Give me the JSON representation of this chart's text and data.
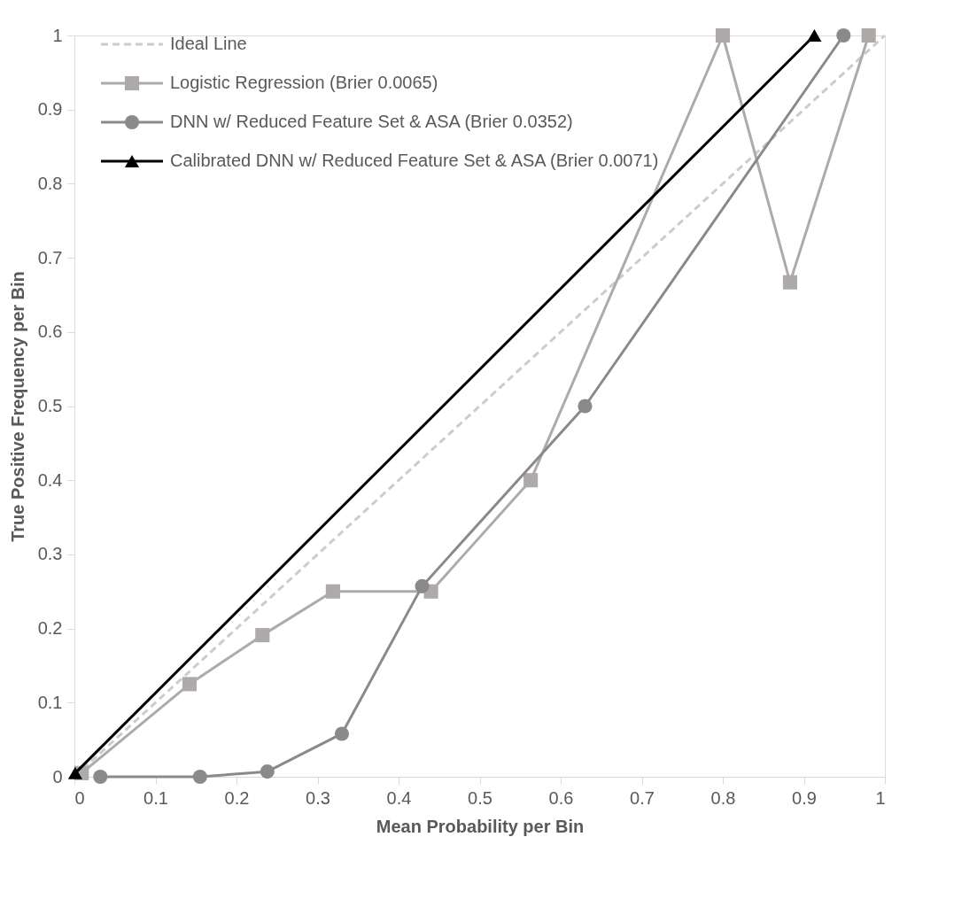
{
  "chart_data": {
    "type": "line",
    "xlabel": "Mean Probability per Bin",
    "ylabel": "True Positive Frequency per Bin",
    "xlim": [
      0,
      1
    ],
    "ylim": [
      0,
      1
    ],
    "xticks": [
      0,
      0.1,
      0.2,
      0.3,
      0.4,
      0.5,
      0.6,
      0.7,
      0.8,
      0.9,
      1
    ],
    "yticks": [
      0,
      0.1,
      0.2,
      0.3,
      0.4,
      0.5,
      0.6,
      0.7,
      0.8,
      0.9,
      1
    ],
    "grid": false,
    "legend": "top left",
    "series": [
      {
        "name": "Ideal Line",
        "color": "#cccccc",
        "line_style": "dashed",
        "marker": "none",
        "x": [
          0,
          1
        ],
        "values": [
          0,
          1
        ]
      },
      {
        "name": "Logistic Regression (Brier 0.0065)",
        "color": "#aeaaaa",
        "line_style": "solid",
        "marker": "square",
        "x": [
          0.009,
          0.142,
          0.232,
          0.319,
          0.44,
          0.563,
          0.8,
          0.883,
          0.98
        ],
        "values": [
          0.005,
          0.125,
          0.191,
          0.25,
          0.25,
          0.4,
          1,
          0.667,
          1
        ]
      },
      {
        "name": "DNN w/ Reduced Feature Set & ASA (Brier 0.0352)",
        "color": "#8a8a8a",
        "line_style": "solid",
        "marker": "circle",
        "x": [
          0.032,
          0.155,
          0.238,
          0.33,
          0.429,
          0.63,
          0.949
        ],
        "values": [
          0,
          0,
          0.007,
          0.058,
          0.257,
          0.5,
          1
        ]
      },
      {
        "name": "Calibrated DNN w/ Reduced Feature Set & ASA (Brier 0.0071)",
        "color": "#000000",
        "line_style": "solid",
        "marker": "triangle",
        "x": [
          0.001,
          0.913
        ],
        "values": [
          0.005,
          1
        ]
      }
    ]
  }
}
